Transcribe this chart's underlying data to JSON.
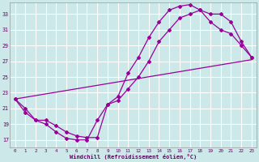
{
  "xlabel": "Windchill (Refroidissement éolien,°C)",
  "bg_color": "#cce8e8",
  "grid_color": "#aacccc",
  "line_color": "#990099",
  "xlim": [
    -0.5,
    23.5
  ],
  "ylim": [
    16.0,
    34.5
  ],
  "yticks": [
    17,
    19,
    21,
    23,
    25,
    27,
    29,
    31,
    33
  ],
  "xticks": [
    0,
    1,
    2,
    3,
    4,
    5,
    6,
    7,
    8,
    9,
    10,
    11,
    12,
    13,
    14,
    15,
    16,
    17,
    18,
    19,
    20,
    21,
    22,
    23
  ],
  "curve1_x": [
    0,
    1,
    2,
    3,
    4,
    5,
    6,
    7,
    8,
    9,
    10,
    11,
    12,
    13,
    14,
    15,
    16,
    17,
    18,
    19,
    20,
    21,
    22,
    23
  ],
  "curve1_y": [
    22.2,
    21.0,
    19.5,
    19.0,
    18.0,
    17.2,
    17.0,
    17.0,
    19.5,
    21.5,
    22.5,
    25.5,
    27.5,
    30.0,
    32.0,
    33.5,
    34.0,
    34.2,
    33.5,
    33.0,
    33.0,
    32.0,
    29.5,
    27.5
  ],
  "curve2_x": [
    0,
    1,
    2,
    3,
    4,
    5,
    6,
    7,
    8,
    9,
    10,
    11,
    12,
    13,
    14,
    15,
    16,
    17,
    18,
    19,
    20,
    21,
    22,
    23
  ],
  "curve2_y": [
    22.2,
    20.5,
    19.5,
    19.5,
    18.8,
    18.0,
    17.5,
    17.3,
    17.3,
    21.5,
    22.0,
    23.5,
    25.0,
    27.0,
    29.5,
    31.0,
    32.5,
    33.0,
    33.5,
    32.0,
    31.0,
    30.5,
    29.0,
    27.5
  ],
  "curve3_x": [
    0,
    23
  ],
  "curve3_y": [
    22.2,
    27.2
  ]
}
